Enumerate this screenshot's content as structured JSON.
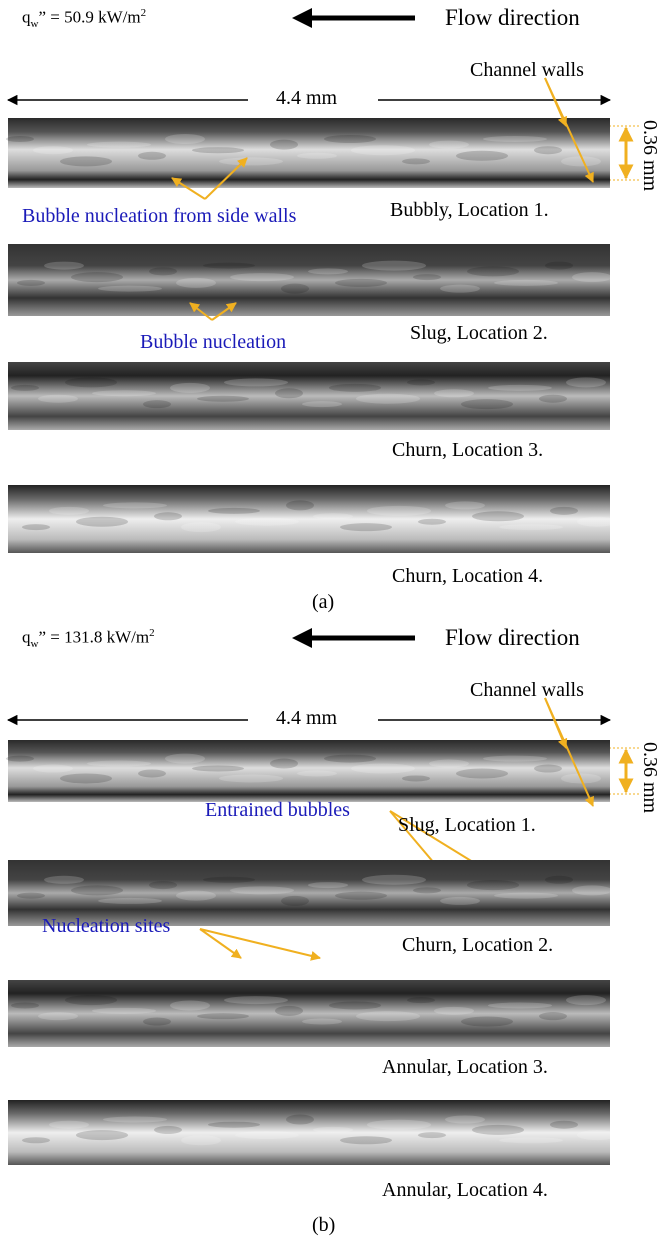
{
  "panels": [
    {
      "heat_flux": {
        "symbol": "q",
        "subscript": "w",
        "text": "” = 50.9 kW/m",
        "superscript": "2"
      },
      "flow_label": "Flow direction",
      "walls_label": "Channel walls",
      "length_label": "4.4 mm",
      "width_label": "0.36 mm",
      "images": [
        {
          "caption": "Bubbly, Location 1.",
          "annotation": "Bubble nucleation from side walls"
        },
        {
          "caption": "Slug, Location 2.",
          "annotation": "Bubble nucleation"
        },
        {
          "caption": "Churn, Location 3."
        },
        {
          "caption": "Churn, Location 4."
        }
      ],
      "panel_label": "(a)"
    },
    {
      "heat_flux": {
        "symbol": "q",
        "subscript": "w",
        "text": "” = 131.8 kW/m",
        "superscript": "2"
      },
      "flow_label": "Flow direction",
      "walls_label": "Channel walls",
      "length_label": "4.4 mm",
      "width_label": "0.36 mm",
      "images": [
        {
          "caption": "Slug, Location 1.",
          "annotation": "Entrained bubbles"
        },
        {
          "caption": "Churn, Location 2.",
          "annotation": "Nucleation sites"
        },
        {
          "caption": "Annular, Location 3."
        },
        {
          "caption": "Annular, Location 4."
        }
      ],
      "panel_label": "(b)"
    }
  ]
}
